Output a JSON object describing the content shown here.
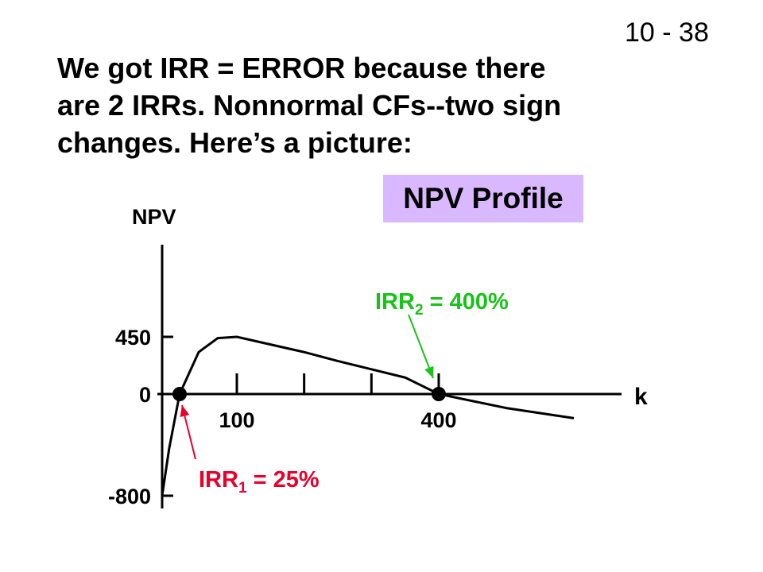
{
  "slide_number": "10 - 38",
  "title_lines": [
    "We got IRR = ERROR because there",
    "are 2 IRRs.  Nonnormal CFs--two sign",
    "changes.  Here’s a picture:"
  ],
  "profile_label": "NPV Profile",
  "colors": {
    "profile_bg": "#d9b8ff",
    "irr1": "#e8002a",
    "irr2": "#19c219",
    "axis": "#000000"
  },
  "chart_data": {
    "type": "line",
    "title": "NPV Profile",
    "xlabel": "k",
    "ylabel": "NPV",
    "x_tick_labels": [
      {
        "value": 100,
        "text": "100"
      },
      {
        "value": 400,
        "text": "400"
      }
    ],
    "y_tick_labels": [
      {
        "value": 450,
        "text": "450"
      },
      {
        "value": 0,
        "text": "0"
      },
      {
        "value": -800,
        "text": "-800"
      }
    ],
    "series": [
      {
        "x": [
          0,
          10,
          25,
          50,
          75,
          100,
          150,
          200,
          250,
          300,
          350,
          400,
          450,
          500
        ],
        "y": [
          -800,
          -430,
          0,
          330,
          440,
          450,
          390,
          330,
          260,
          195,
          130,
          0,
          -110,
          -190
        ]
      }
    ],
    "irrs": [
      {
        "k": 25,
        "base": "IRR",
        "sub": "1",
        "suffix": " = 25%"
      },
      {
        "k": 400,
        "base": "IRR",
        "sub": "2",
        "suffix": " = 400%"
      }
    ],
    "grid": false,
    "legend": "none"
  }
}
